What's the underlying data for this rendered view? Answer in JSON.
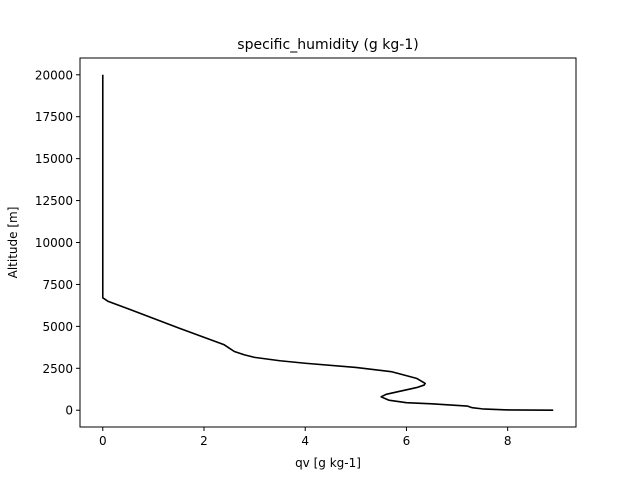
{
  "chart_data": {
    "type": "line",
    "title": "specific_humidity (g kg-1)",
    "xlabel": "qv [g kg-1]",
    "ylabel": "Altitude [m]",
    "xlim": [
      -0.45,
      9.35
    ],
    "ylim": [
      -1000,
      21000
    ],
    "xticks": [
      0,
      2,
      4,
      6,
      8
    ],
    "xtick_labels": [
      "0",
      "2",
      "4",
      "6",
      "8"
    ],
    "yticks": [
      0,
      2500,
      5000,
      7500,
      10000,
      12500,
      15000,
      17500,
      20000
    ],
    "ytick_labels": [
      "0",
      "2500",
      "5000",
      "7500",
      "10000",
      "12500",
      "15000",
      "17500",
      "20000"
    ],
    "grid": false,
    "line_color": "#000000",
    "series": [
      {
        "x": [
          8.9,
          8.0,
          7.5,
          7.3,
          7.2,
          6.5,
          6.0,
          5.65,
          5.5,
          5.6,
          5.9,
          6.2,
          6.35,
          6.37,
          6.2,
          5.7,
          5.0,
          4.0,
          3.5,
          3.0,
          2.8,
          2.6,
          2.5,
          2.4,
          1.5,
          0.5,
          0.1,
          0.0,
          0.0,
          0.0,
          0.0
        ],
        "y": [
          0,
          20,
          80,
          150,
          250,
          380,
          450,
          600,
          800,
          950,
          1150,
          1350,
          1500,
          1600,
          1900,
          2300,
          2550,
          2800,
          2950,
          3150,
          3300,
          3500,
          3700,
          3900,
          4900,
          6050,
          6500,
          6700,
          8000,
          15000,
          20000
        ]
      }
    ]
  }
}
